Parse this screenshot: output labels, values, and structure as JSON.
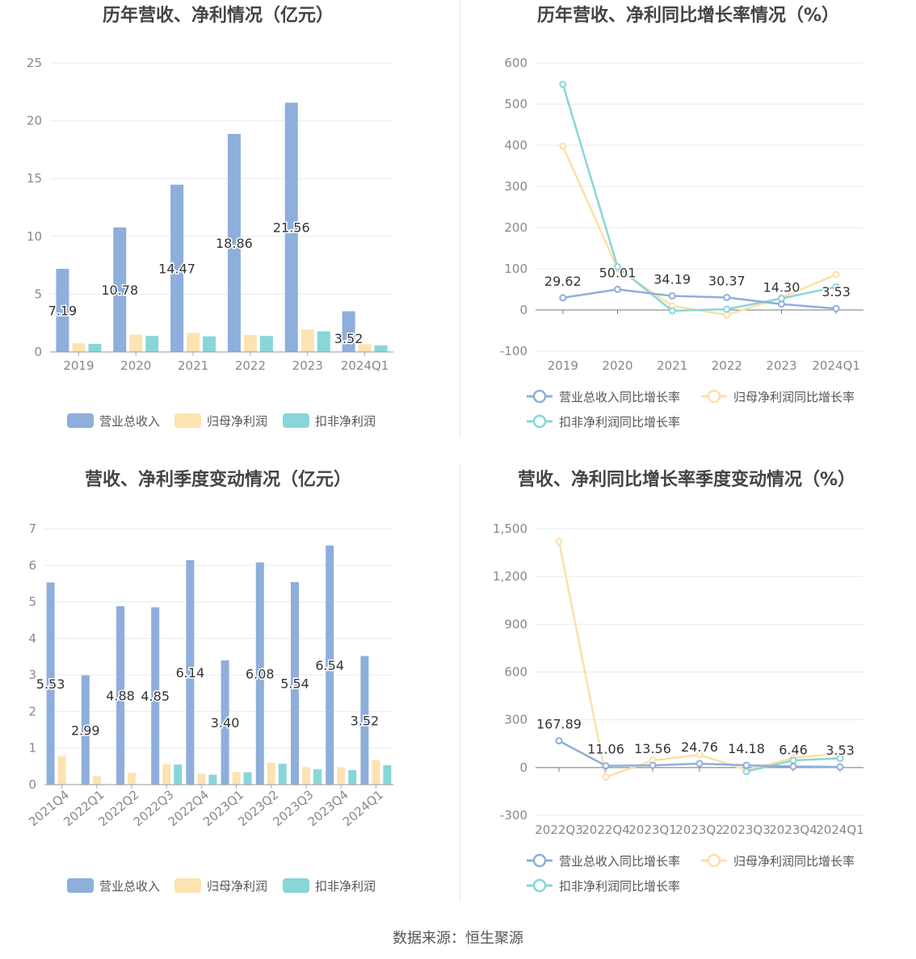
{
  "colors": {
    "revenue": "#8eaedc",
    "parent_profit": "#fde3b2",
    "deducted_profit": "#88d6d8",
    "rev_line": "#8eaedc",
    "parent_line": "#fde0a4",
    "deducted_line": "#88d6d8",
    "axis_text": "#888888",
    "grid": "#e6e9f0",
    "title": "#444444"
  },
  "source": "数据来源：恒生聚源",
  "chart_data": [
    {
      "type": "bar",
      "title": "历年营收、净利情况（亿元）",
      "categories": [
        "2019",
        "2020",
        "2021",
        "2022",
        "2023",
        "2024Q1"
      ],
      "ylim": [
        0,
        25
      ],
      "yticks": [
        0,
        5,
        10,
        15,
        20,
        25
      ],
      "series": [
        {
          "name": "营业总收入",
          "values": [
            7.19,
            10.78,
            14.47,
            18.86,
            21.56,
            3.52
          ],
          "labels": [
            "7.19",
            "10.78",
            "14.47",
            "18.86",
            "21.56",
            "3.52"
          ]
        },
        {
          "name": "归母净利润",
          "values": [
            0.75,
            1.5,
            1.65,
            1.48,
            1.95,
            0.68
          ]
        },
        {
          "name": "扣非净利润",
          "values": [
            0.7,
            1.38,
            1.35,
            1.38,
            1.78,
            0.57
          ]
        }
      ],
      "legend": "bottom"
    },
    {
      "type": "line",
      "title": "历年营收、净利同比增长率情况（%）",
      "categories": [
        "2019",
        "2020",
        "2021",
        "2022",
        "2023",
        "2024Q1"
      ],
      "ylim": [
        -100,
        600
      ],
      "yticks": [
        -100,
        0,
        100,
        200,
        300,
        400,
        500,
        600
      ],
      "series": [
        {
          "name": "营业总收入同比增长率",
          "values": [
            29.62,
            50.01,
            34.19,
            30.37,
            14.3,
            3.53
          ],
          "labels": [
            "29.62",
            "50.01",
            "34.19",
            "30.37",
            "14.30",
            "3.53"
          ]
        },
        {
          "name": "归母净利润同比增长率",
          "values": [
            398,
            100,
            10,
            -12,
            30,
            86
          ]
        },
        {
          "name": "扣非净利润同比增长率",
          "values": [
            548,
            105,
            -2,
            2,
            28,
            56
          ]
        }
      ],
      "legend": "bottom"
    },
    {
      "type": "bar",
      "title": "营收、净利季度变动情况（亿元）",
      "categories": [
        "2021Q4",
        "2022Q1",
        "2022Q2",
        "2022Q3",
        "2022Q4",
        "2023Q1",
        "2023Q2",
        "2023Q3",
        "2023Q4",
        "2024Q1"
      ],
      "ylim": [
        0,
        7
      ],
      "yticks": [
        0,
        1,
        2,
        3,
        4,
        5,
        6,
        7
      ],
      "series": [
        {
          "name": "营业总收入",
          "values": [
            5.53,
            2.99,
            4.88,
            4.85,
            6.14,
            3.4,
            6.08,
            5.54,
            6.54,
            3.52
          ],
          "labels": [
            "5.53",
            "2.99",
            "4.88",
            "4.85",
            "6.14",
            "3.40",
            "6.08",
            "5.54",
            "6.54",
            "3.52"
          ]
        },
        {
          "name": "归母净利润",
          "values": [
            0.78,
            0.24,
            0.32,
            0.56,
            0.3,
            0.35,
            0.6,
            0.48,
            0.48,
            0.67
          ]
        },
        {
          "name": "扣非净利润",
          "values": [
            0,
            0,
            0,
            0.55,
            0.27,
            0.34,
            0.57,
            0.42,
            0.4,
            0.53
          ]
        }
      ],
      "legend": "bottom"
    },
    {
      "type": "line",
      "title": "营收、净利同比增长率季度变动情况（%）",
      "categories": [
        "2022Q3",
        "2022Q4",
        "2023Q1",
        "2023Q2",
        "2023Q3",
        "2023Q4",
        "2024Q1"
      ],
      "ylim": [
        -300,
        1500
      ],
      "yticks": [
        -300,
        0,
        300,
        600,
        900,
        1200,
        1500
      ],
      "ytick_labels": [
        "-300",
        "0",
        "300",
        "600",
        "900",
        "1,200",
        "1,500"
      ],
      "series": [
        {
          "name": "营业总收入同比增长率",
          "values": [
            167.89,
            11.06,
            13.56,
            24.76,
            14.18,
            6.46,
            3.53
          ],
          "labels": [
            "167.89",
            "11.06",
            "13.56",
            "24.76",
            "14.18",
            "6.46",
            "3.53"
          ]
        },
        {
          "name": "归母净利润同比增长率",
          "values": [
            1420,
            -60,
            45,
            80,
            -15,
            60,
            88
          ]
        },
        {
          "name": "扣非净利润同比增长率",
          "values": [
            null,
            null,
            null,
            null,
            -25,
            45,
            58
          ]
        }
      ],
      "legend": "bottom"
    }
  ]
}
